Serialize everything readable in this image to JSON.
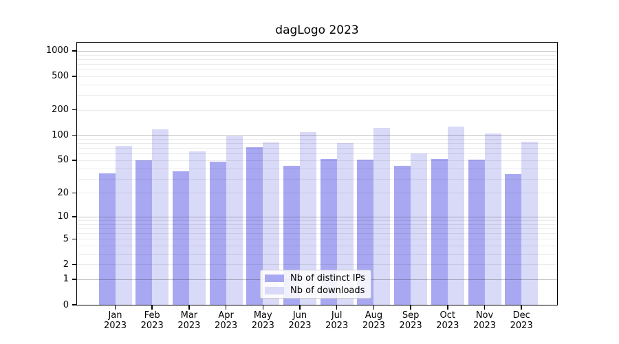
{
  "title": "dagLogo 2023",
  "chart_data": {
    "type": "bar",
    "title": "dagLogo 2023",
    "categories": [
      "Jan 2023",
      "Feb 2023",
      "Mar 2023",
      "Apr 2023",
      "May 2023",
      "Jun 2023",
      "Jul 2023",
      "Aug 2023",
      "Sep 2023",
      "Oct 2023",
      "Nov 2023",
      "Dec 2023"
    ],
    "months": [
      "Jan",
      "Feb",
      "Mar",
      "Apr",
      "May",
      "Jun",
      "Jul",
      "Aug",
      "Sep",
      "Oct",
      "Nov",
      "Dec"
    ],
    "year": "2023",
    "series": [
      {
        "name": "Nb of distinct IPs",
        "color": "#a8a8f2",
        "values": [
          35,
          50,
          37,
          48,
          72,
          43,
          52,
          51,
          43,
          52,
          51,
          34
        ]
      },
      {
        "name": "Nb of downloads",
        "color": "#d9d9f8",
        "values": [
          75,
          117,
          64,
          97,
          82,
          108,
          80,
          123,
          60,
          127,
          105,
          84
        ]
      }
    ],
    "yscale": "log1p",
    "yticks": [
      0,
      1,
      2,
      5,
      10,
      20,
      50,
      100,
      200,
      500,
      1000
    ],
    "ylim": [
      0,
      1250
    ],
    "grid": true,
    "grid_major_at": [
      1,
      10,
      100,
      1000
    ],
    "grid_minor_at": [
      2,
      3,
      4,
      5,
      6,
      7,
      8,
      9,
      20,
      30,
      40,
      50,
      60,
      70,
      80,
      90,
      200,
      300,
      400,
      500,
      600,
      700,
      800,
      900
    ],
    "legend_position": "lower center",
    "xlabel": "",
    "ylabel": ""
  }
}
